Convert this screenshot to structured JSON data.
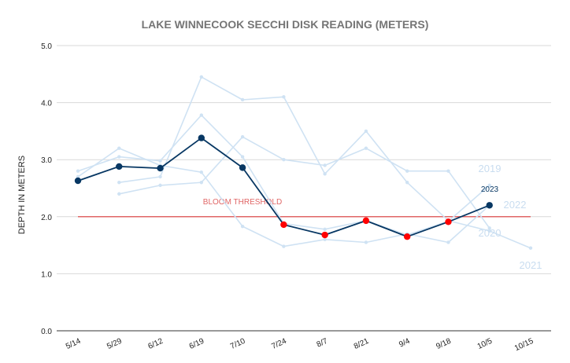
{
  "chart_data": {
    "type": "line",
    "title": "LAKE WINNECOOK SECCHI DISK READING (METERS)",
    "xlabel": "",
    "ylabel": "DEPTH IN METERS",
    "categories": [
      "5/14",
      "5/29",
      "6/12",
      "6/19",
      "7/10",
      "7/24",
      "8/7",
      "8/21",
      "9/4",
      "9/18",
      "10/5",
      "10/15"
    ],
    "ylim": [
      0,
      5
    ],
    "yticks": [
      "0.0",
      "1.0",
      "2.0",
      "3.0",
      "4.0",
      "5.0"
    ],
    "grid": true,
    "legend": "none",
    "threshold": {
      "label": "BLOOM THRESHOLD",
      "value": 2.0,
      "color": "#e06666"
    },
    "series": [
      {
        "name": "2019",
        "color": "#cfe2f3",
        "values": [
          2.8,
          3.05,
          2.98,
          3.78,
          3.05,
          1.88,
          1.78,
          1.93,
          1.68,
          1.92,
          2.55,
          null
        ],
        "markers": false
      },
      {
        "name": "2020",
        "color": "#cfe2f3",
        "values": [
          null,
          2.4,
          2.55,
          2.6,
          3.4,
          3.0,
          2.9,
          3.2,
          2.8,
          2.8,
          1.8,
          null
        ],
        "markers": false
      },
      {
        "name": "2021",
        "color": "#cfe2f3",
        "values": [
          null,
          2.6,
          2.7,
          4.45,
          4.05,
          4.1,
          2.75,
          3.5,
          2.6,
          1.93,
          1.75,
          1.45
        ],
        "markers": false
      },
      {
        "name": "2022",
        "color": "#cfe2f3",
        "values": [
          2.7,
          3.2,
          2.9,
          2.78,
          1.83,
          1.48,
          1.6,
          1.55,
          1.7,
          1.55,
          2.2,
          null
        ],
        "markers": false
      },
      {
        "name": "2023",
        "color": "#073763",
        "values": [
          2.63,
          2.88,
          2.85,
          3.38,
          2.86,
          1.86,
          1.68,
          1.93,
          1.65,
          1.91,
          2.2,
          null
        ],
        "markers": true,
        "below_threshold_marker_color": "#ff0000"
      }
    ],
    "series_labels": [
      "2019",
      "2020",
      "2021",
      "2022",
      "2023"
    ]
  }
}
